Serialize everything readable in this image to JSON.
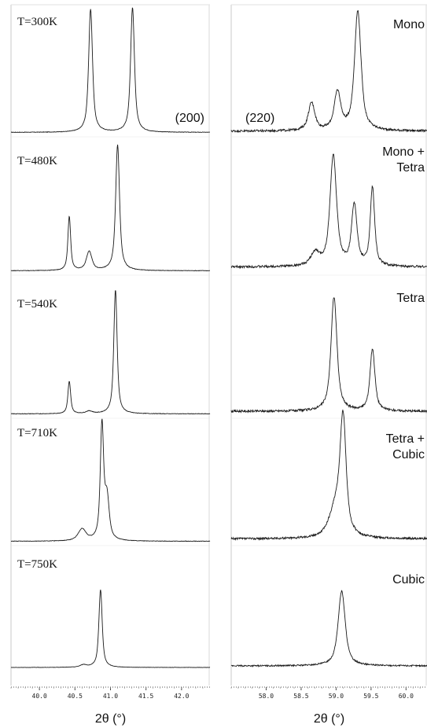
{
  "chart_data": [
    {
      "type": "line",
      "reflection": "(200)",
      "xlabel": "2θ (°)",
      "ylabel": "",
      "xlim": [
        39.6,
        42.4
      ],
      "x_ticks": [
        "40.0",
        "40.5",
        "41.0",
        "41.5",
        "42.0"
      ],
      "grid": false,
      "panels": [
        {
          "temperature": "T=300K",
          "baseline": 0.01,
          "peaks": [
            {
              "x": 40.72,
              "h": 0.98,
              "w": 0.035
            },
            {
              "x": 41.31,
              "h": 0.99,
              "w": 0.035
            }
          ]
        },
        {
          "temperature": "T=480K",
          "baseline": 0.01,
          "peaks": [
            {
              "x": 40.42,
              "h": 0.43,
              "w": 0.025
            },
            {
              "x": 40.7,
              "h": 0.15,
              "w": 0.05
            },
            {
              "x": 41.1,
              "h": 1.0,
              "w": 0.035
            }
          ]
        },
        {
          "temperature": "T=540K",
          "baseline": 0.01,
          "peaks": [
            {
              "x": 40.42,
              "h": 0.26,
              "w": 0.025
            },
            {
              "x": 40.7,
              "h": 0.02,
              "w": 0.06
            },
            {
              "x": 41.07,
              "h": 1.0,
              "w": 0.03
            }
          ]
        },
        {
          "temperature": "T=710K",
          "baseline": 0.01,
          "peaks": [
            {
              "x": 40.6,
              "h": 0.1,
              "w": 0.07
            },
            {
              "x": 40.88,
              "h": 0.97,
              "w": 0.03
            },
            {
              "x": 40.95,
              "h": 0.35,
              "w": 0.04
            }
          ]
        },
        {
          "temperature": "T=750K",
          "baseline": 0.01,
          "peaks": [
            {
              "x": 40.62,
              "h": 0.03,
              "w": 0.06
            },
            {
              "x": 40.86,
              "h": 0.99,
              "w": 0.03
            }
          ]
        }
      ]
    },
    {
      "type": "line",
      "reflection": "(220)",
      "xlabel": "2θ (°)",
      "ylabel": "",
      "xlim": [
        57.5,
        60.3
      ],
      "x_ticks": [
        "58.0",
        "58.5",
        "59.0",
        "59.5",
        "60.0"
      ],
      "grid": false,
      "panels": [
        {
          "phase": [
            "Mono"
          ],
          "baseline": 0.02,
          "peaks": [
            {
              "x": 58.65,
              "h": 0.22,
              "w": 0.06
            },
            {
              "x": 59.02,
              "h": 0.3,
              "w": 0.06
            },
            {
              "x": 59.31,
              "h": 0.95,
              "w": 0.06
            }
          ]
        },
        {
          "phase": [
            "Mono +",
            "Tetra"
          ],
          "baseline": 0.04,
          "peaks": [
            {
              "x": 58.7,
              "h": 0.1,
              "w": 0.08
            },
            {
              "x": 58.96,
              "h": 0.88,
              "w": 0.06
            },
            {
              "x": 59.26,
              "h": 0.48,
              "w": 0.05
            },
            {
              "x": 59.52,
              "h": 0.62,
              "w": 0.04
            }
          ]
        },
        {
          "phase": [
            "Tetra"
          ],
          "baseline": 0.03,
          "peaks": [
            {
              "x": 58.97,
              "h": 0.92,
              "w": 0.055
            },
            {
              "x": 59.52,
              "h": 0.5,
              "w": 0.045
            }
          ]
        },
        {
          "phase": [
            "Tetra +",
            "Cubic"
          ],
          "baseline": 0.03,
          "peaks": [
            {
              "x": 59.1,
              "h": 0.95,
              "w": 0.055
            },
            {
              "x": 59.0,
              "h": 0.25,
              "w": 0.12
            }
          ]
        },
        {
          "phase": [
            "Cubic"
          ],
          "baseline": 0.03,
          "peaks": [
            {
              "x": 59.08,
              "h": 0.95,
              "w": 0.065
            }
          ]
        }
      ]
    }
  ]
}
